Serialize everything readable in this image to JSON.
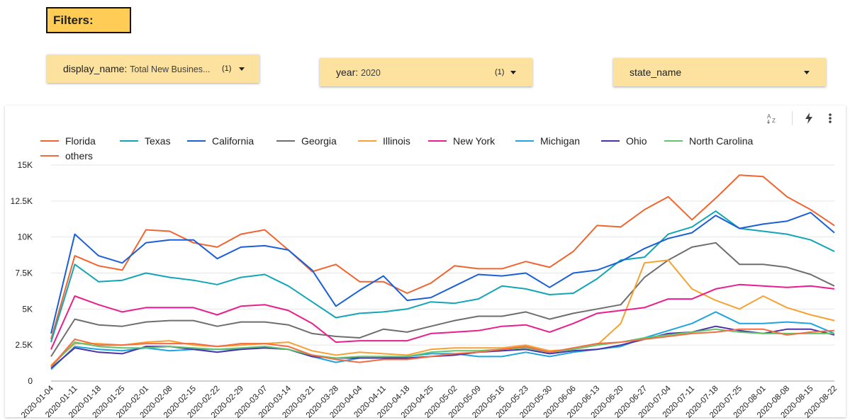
{
  "filters": {
    "title": "Filters:",
    "controls": [
      {
        "name": "display_name",
        "value": "Total New Busines...",
        "count": "(1)"
      },
      {
        "name": "year",
        "value": "2020",
        "count": "(1)"
      },
      {
        "name": "state_name",
        "value": "",
        "count": ""
      }
    ]
  },
  "toolbar": {
    "icons": [
      "sort-az-icon",
      "lightning-icon",
      "more-vert-icon"
    ]
  },
  "colors": {
    "accent": "#ffcc55",
    "filter_bg": "#fde29f"
  },
  "chart_data": {
    "type": "line",
    "ylim": [
      0,
      15000
    ],
    "yticks": [
      0,
      2500,
      5000,
      7500,
      10000,
      12500,
      15000
    ],
    "ytick_labels": [
      "0",
      "2.5K",
      "5K",
      "7.5K",
      "10K",
      "12.5K",
      "15K"
    ],
    "legend_position": "top-left",
    "grid": true,
    "categories": [
      "2020-01-04",
      "2020-01-11",
      "2020-01-18",
      "2020-01-25",
      "2020-02-01",
      "2020-02-08",
      "2020-02-15",
      "2020-02-22",
      "2020-02-29",
      "2020-03-07",
      "2020-03-14",
      "2020-03-21",
      "2020-03-28",
      "2020-04-04",
      "2020-04-11",
      "2020-04-18",
      "2020-04-25",
      "2020-05-02",
      "2020-05-09",
      "2020-05-16",
      "2020-05-23",
      "2020-05-30",
      "2020-06-06",
      "2020-06-13",
      "2020-06-20",
      "2020-06-27",
      "2020-07-04",
      "2020-07-11",
      "2020-07-18",
      "2020-07-25",
      "2020-08-01",
      "2020-08-08",
      "2020-08-15",
      "2020-08-22"
    ],
    "series": [
      {
        "name": "Florida",
        "color": "#f0652f",
        "values": [
          2900,
          8700,
          8000,
          7700,
          10500,
          10400,
          9600,
          9300,
          10200,
          10500,
          9100,
          7600,
          8100,
          6900,
          6900,
          6100,
          6800,
          8000,
          7800,
          7800,
          8300,
          7900,
          9000,
          10800,
          10700,
          11900,
          12800,
          11200,
          12700,
          14300,
          14200,
          12800,
          11900,
          10800
        ]
      },
      {
        "name": "Texas",
        "color": "#12a5b5",
        "values": [
          2700,
          8100,
          6900,
          7000,
          7500,
          7200,
          7000,
          6700,
          7200,
          7400,
          6600,
          5500,
          4400,
          4700,
          4800,
          5000,
          5500,
          5400,
          5700,
          6600,
          6400,
          6000,
          6100,
          7100,
          8400,
          8600,
          10200,
          10700,
          11800,
          10600,
          10400,
          10200,
          9800,
          9000
        ]
      },
      {
        "name": "California",
        "color": "#1a5fd6",
        "values": [
          3300,
          10200,
          8700,
          8200,
          9600,
          9800,
          9800,
          8500,
          9300,
          9400,
          9100,
          7700,
          5200,
          6300,
          7300,
          5600,
          5800,
          6600,
          7400,
          7300,
          7500,
          6500,
          7500,
          7700,
          8300,
          9200,
          9900,
          10300,
          11500,
          10600,
          10900,
          11100,
          11700,
          10300
        ]
      },
      {
        "name": "Georgia",
        "color": "#6e6e6e",
        "values": [
          1700,
          4300,
          3900,
          3800,
          4100,
          4200,
          4200,
          3800,
          4100,
          4100,
          3900,
          3300,
          3100,
          3000,
          3600,
          3400,
          3800,
          4200,
          4500,
          4500,
          4800,
          4300,
          4700,
          5000,
          5300,
          7200,
          8400,
          9300,
          9600,
          8100,
          8100,
          7900,
          7400,
          6600
        ]
      },
      {
        "name": "Illinois",
        "color": "#f7a133",
        "values": [
          1100,
          2600,
          2600,
          2500,
          2700,
          2800,
          2500,
          2400,
          2500,
          2600,
          2700,
          2100,
          1800,
          2000,
          1900,
          1800,
          2200,
          2300,
          2300,
          2300,
          2500,
          2100,
          2200,
          2500,
          4000,
          8200,
          8400,
          6400,
          5600,
          5000,
          5900,
          5100,
          4600,
          4200
        ]
      },
      {
        "name": "New York",
        "color": "#e91e8c",
        "values": [
          2200,
          5900,
          5300,
          4800,
          5100,
          5100,
          5100,
          4600,
          5200,
          5300,
          4900,
          4000,
          2700,
          2800,
          2800,
          2800,
          3300,
          3400,
          3500,
          3800,
          3900,
          3400,
          4000,
          4700,
          4900,
          5100,
          5700,
          5700,
          6400,
          6700,
          6600,
          6500,
          6600,
          6400
        ]
      },
      {
        "name": "Michigan",
        "color": "#1ea4df",
        "values": [
          800,
          2400,
          2200,
          2100,
          2300,
          2100,
          2200,
          2200,
          2200,
          2400,
          2200,
          1700,
          1300,
          1600,
          1600,
          1700,
          1900,
          1900,
          1700,
          1700,
          2000,
          1700,
          2000,
          2200,
          2400,
          3000,
          3500,
          4000,
          4800,
          4000,
          4000,
          4100,
          4000,
          3300
        ]
      },
      {
        "name": "Ohio",
        "color": "#4c32a8",
        "values": [
          900,
          2300,
          2000,
          1900,
          2400,
          2400,
          2200,
          2000,
          2200,
          2300,
          2200,
          1700,
          1600,
          1600,
          1600,
          1600,
          1700,
          1800,
          2000,
          2100,
          2200,
          1900,
          2100,
          2200,
          2500,
          2900,
          3300,
          3400,
          3800,
          3500,
          3300,
          3600,
          3600,
          3200
        ]
      },
      {
        "name": "North Carolina",
        "color": "#62c46b",
        "values": [
          1000,
          2700,
          2400,
          2300,
          2300,
          2400,
          2300,
          2200,
          2300,
          2400,
          2200,
          1800,
          1600,
          1700,
          1700,
          1700,
          2000,
          2100,
          2100,
          2200,
          2300,
          2000,
          2200,
          2500,
          2700,
          3000,
          3200,
          3400,
          3600,
          3400,
          3300,
          3300,
          3300,
          3300
        ]
      },
      {
        "name": "others",
        "color": "#f26d43",
        "values": [
          1000,
          2900,
          2500,
          2500,
          2600,
          2600,
          2600,
          2400,
          2600,
          2600,
          2400,
          1800,
          1500,
          1300,
          1500,
          1500,
          1700,
          1900,
          2000,
          2200,
          2400,
          2000,
          2300,
          2600,
          2700,
          2900,
          3100,
          3300,
          3400,
          3600,
          3600,
          3200,
          3400,
          3500
        ]
      }
    ]
  }
}
